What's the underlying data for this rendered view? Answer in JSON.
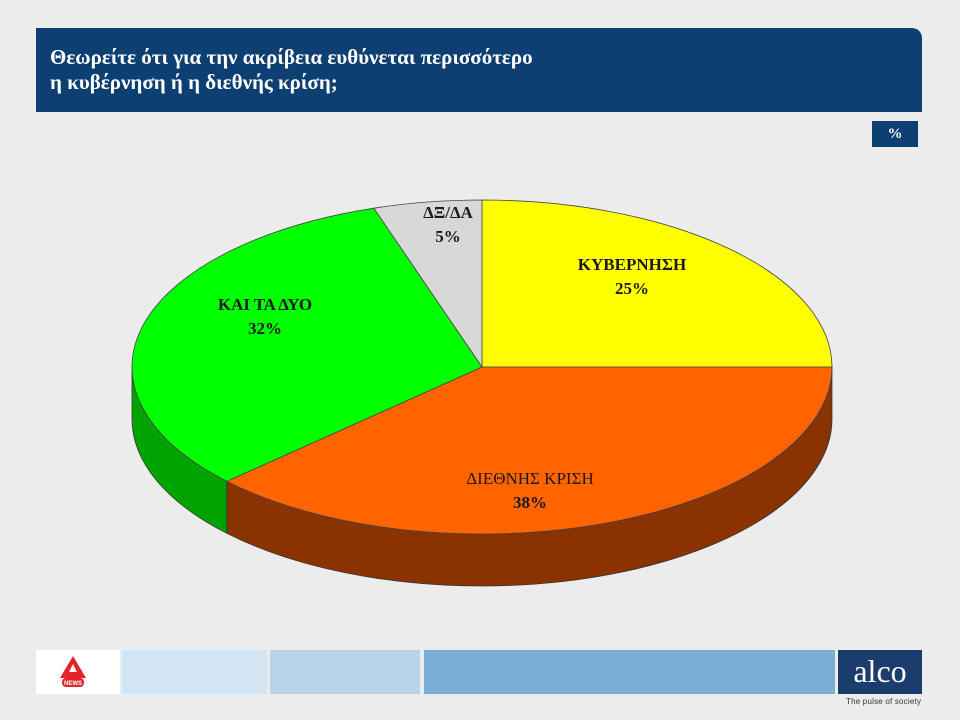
{
  "header": {
    "title_line1": "Θεωρείτε ότι για την ακρίβεια ευθύνεται περισσότερο",
    "title_line2": "η κυβέρνηση ή η διεθνής κρίση;"
  },
  "unit_badge": "%",
  "chart_data": {
    "type": "pie",
    "title": "Θεωρείτε ότι για την ακρίβεια ευθύνεται περισσότερο η κυβέρνηση ή η διεθνής κρίση;",
    "unit": "%",
    "slices": [
      {
        "label": "ΚΥΒΕΡΝΗΣΗ",
        "value": 25,
        "value_label": "25%",
        "color": "#ffff00",
        "side_color": "#8a8a00"
      },
      {
        "label": "ΔΙΕΘΝΗΣ ΚΡΙΣΗ",
        "value": 38,
        "value_label": "38%",
        "color": "#ff6400",
        "side_color": "#8a3300"
      },
      {
        "label": "ΚΑΙ ΤΑ ΔΥΟ",
        "value": 32,
        "value_label": "32%",
        "color": "#00ff00",
        "side_color": "#00a400"
      },
      {
        "label": "ΔΞ/ΔΑ",
        "value": 5,
        "value_label": "5%",
        "color": "#d8d8d8",
        "side_color": "#888888"
      }
    ]
  },
  "footer": {
    "brand": "alco",
    "tagline": "The pulse of society",
    "news_logo_text": "NEWS"
  }
}
